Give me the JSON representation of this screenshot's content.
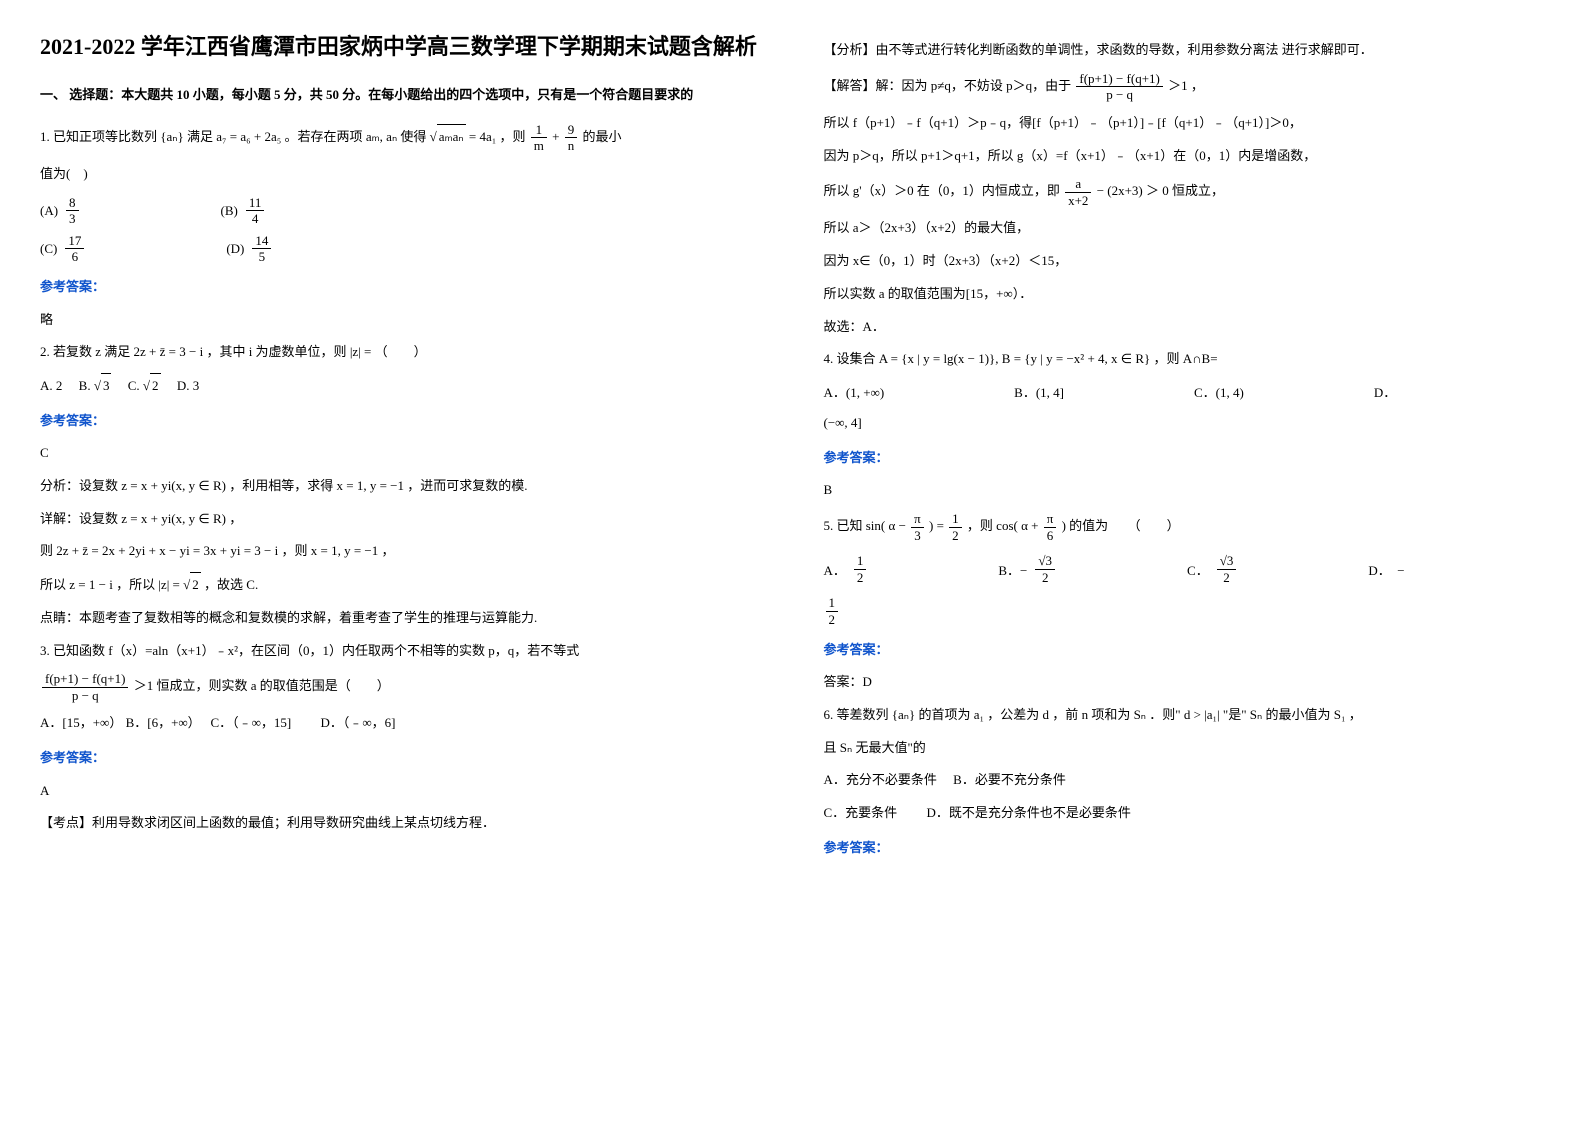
{
  "title": "2021-2022 学年江西省鹰潭市田家炳中学高三数学理下学期期末试题含解析",
  "section1_title": "一、 选择题：本大题共 10 小题，每小题 5 分，共 50 分。在每小题给出的四个选项中，只有是一个符合题目要求的",
  "q1": {
    "stem_a": "1. 已知正项等比数列",
    "stem_b": "满足",
    "stem_c": "。若存在两项",
    "stem_d": "使得",
    "stem_e": "，则",
    "stem_f": "的最小",
    "stem_g": "值为(　)",
    "seq": "{aₙ}",
    "eq1": "a₇ = a₆ + 2a₅",
    "terms": "aₘ, aₙ",
    "eq2_l": "aₘaₙ",
    "eq2_r": " = 4a₁",
    "frac1_n": "1",
    "frac1_d": "m",
    "plus": " + ",
    "frac2_n": "9",
    "frac2_d": "n",
    "optA_l": "(A)",
    "optA_n": "8",
    "optA_d": "3",
    "optB_l": "(B)",
    "optB_n": "11",
    "optB_d": "4",
    "optC_l": "(C)",
    "optC_n": "17",
    "optC_d": "6",
    "optD_l": "(D)",
    "optD_n": "14",
    "optD_d": "5",
    "ans_label": "参考答案：",
    "ans": "略"
  },
  "q2": {
    "stem_a": "2. 若复数 z 满足",
    "eq": "2z + z̄ = 3 − i",
    "stem_b": "，其中 i 为虚数单位，则",
    "abs": "|z| =",
    "stem_c": "（　　）",
    "optA": "A. 2",
    "optB_pre": "B. ",
    "optB_sqrt": "3",
    "optC_pre": "C. ",
    "optC_sqrt": "2",
    "optD": "D. 3",
    "ans_label": "参考答案：",
    "ans": "C",
    "an1_a": "分析：设复数",
    "an1_eq": "z = x + yi(x, y ∈ R)",
    "an1_b": "，利用相等，求得",
    "an1_c": "x = 1, y = −1",
    "an1_d": "，进而可求复数的模.",
    "an2_a": "详解：设复数",
    "an2_eq": "z = x + yi(x, y ∈ R)",
    "an2_b": "，",
    "an3_a": "则",
    "an3_eq": "2z + z̄ = 2x + 2yi + x − yi = 3x + yi = 3 − i",
    "an3_b": "，则",
    "an3_c": "x = 1, y = −1",
    "an3_d": "，",
    "an4_a": "所以",
    "an4_eq1": "z = 1 − i",
    "an4_b": "，所以",
    "an4_eq2_l": "|z| = ",
    "an4_eq2_r": "2",
    "an4_c": "，故选 C.",
    "an5": "点睛：本题考查了复数相等的概念和复数模的求解，着重考查了学生的推理与运算能力."
  },
  "q3": {
    "stem": "3. 已知函数 f（x）=aln（x+1）﹣x²，在区间（0，1）内任取两个不相等的实数 p，q，若不等式",
    "frac_n": "f(p+1) − f(q+1)",
    "frac_d": "p − q",
    "stem_b": "＞1 恒成立，则实数 a 的取值范围是（　　）",
    "optA": "A．[15，+∞）",
    "optB": "B．[6，+∞）",
    "optC": "C．（﹣∞，15]",
    "optD": "D．（﹣∞，6]",
    "ans_label": "参考答案：",
    "ans": "A",
    "an_kp": "【考点】利用导数求闭区间上函数的最值；利用导数研究曲线上某点切线方程．",
    "an_fx": "【分析】由不等式进行转化判断函数的单调性，求函数的导数，利用参数分离法 进行求解即可．",
    "an_jd_a": "【解答】解：因为 p≠q，不妨设 p＞q，由于",
    "an_jd_frac_n": "f(p+1) − f(q+1)",
    "an_jd_frac_d": "p − q",
    "an_jd_b": "＞1",
    "an_jd_c": "，",
    "l1": "所以 f（p+1）﹣f（q+1）＞p﹣q，得[f（p+1）﹣（p+1）]﹣[f（q+1）﹣（q+1）]＞0，",
    "l2": "因为 p＞q，所以 p+1＞q+1，所以 g（x）=f（x+1）﹣（x+1）在（0，1）内是增函数，",
    "l3_a": "所以 g'（x）＞0 在（0，1）内恒成立，即",
    "l3_frac_n": "a",
    "l3_frac_d": "x+2",
    "l3_b": " − (2x+3) ＞ 0",
    "l3_c": "恒成立，",
    "l4": "所以 a＞（2x+3）（x+2）的最大值，",
    "l5": "因为 x∈（0，1）时（2x+3）（x+2）＜15，",
    "l6": "所以实数 a 的取值范围为[15，+∞）．",
    "l7": "故选：A．"
  },
  "q4": {
    "stem_a": "4. 设集合",
    "setA": "A = {x | y = lg(x − 1)}, B = {y | y = −x² + 4, x ∈ R}",
    "stem_b": "，则 A∩B=",
    "optA_l": "A．",
    "optA": "(1, +∞)",
    "optB_l": "B．",
    "optB": "(1, 4]",
    "optC_l": "C．",
    "optC": "(1, 4)",
    "optD_l": "D．",
    "optD": "(−∞, 4]",
    "ans_label": "参考答案：",
    "ans": "B"
  },
  "q5": {
    "stem_a": "5. 已知 sin(",
    "a1": "α − ",
    "f1_n": "π",
    "f1_d": "3",
    "a2": ") = ",
    "f2_n": "1",
    "f2_d": "2",
    "a3": "，则 cos(",
    "a4": "α + ",
    "f3_n": "π",
    "f3_d": "6",
    "a5": ") 的值为　　（　　）",
    "optA_l": "A．",
    "optA_n": "1",
    "optA_d": "2",
    "optB_l": "B．−",
    "optB_n": "√3",
    "optB_d": "2",
    "optC_l": "C．",
    "optC_n": "√3",
    "optC_d": "2",
    "optD_l": "D．　−",
    "optD_n": "1",
    "optD_d": "2",
    "ans_label": "参考答案：",
    "ans": "答案：D"
  },
  "q6": {
    "stem_a": "6. 等差数列",
    "seq": "{aₙ}",
    "stem_b": "的首项为",
    "a1": "a₁",
    "stem_c": "，公差为",
    "d": "d",
    "stem_d": "，前",
    "n": "n",
    "stem_e": "项和为",
    "sn": "Sₙ",
    "stem_f": "．则\"",
    "cond": "d > |a₁|",
    "stem_g": "\"是\"",
    "sn2": "Sₙ",
    "stem_h": "的最小值为",
    "s1": "S₁",
    "stem_i": "，",
    "stem_j": "且",
    "sn3": "Sₙ",
    "stem_k": "无最大值\"的",
    "optA": "A．充分不必要条件",
    "optB": "B．必要不充分条件",
    "optC": "C．充要条件",
    "optD": "D．既不是充分条件也不是必要条件",
    "ans_label": "参考答案："
  }
}
